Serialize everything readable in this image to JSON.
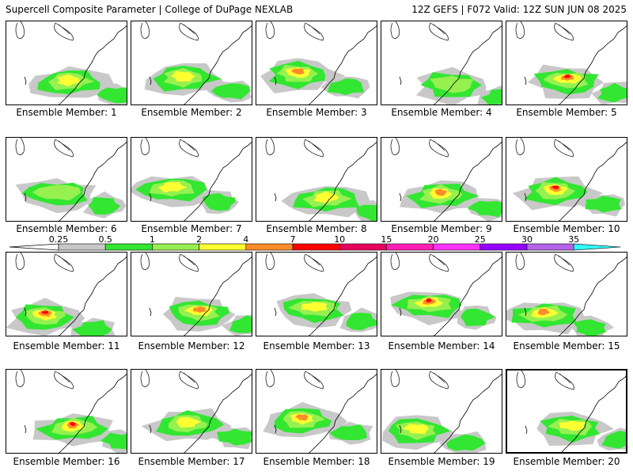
{
  "header": {
    "left": "Supercell Composite Parameter | College of DuPage NEXLAB",
    "right": "12Z GEFS | F072 Valid: 12Z SUN JUN 08 2025"
  },
  "caption_prefix": "Ensemble Member: ",
  "highlighted_member": 20,
  "members": [
    {
      "id": 1,
      "peak": 2
    },
    {
      "id": 2,
      "peak": 2
    },
    {
      "id": 3,
      "peak": 4
    },
    {
      "id": 4,
      "peak": 1
    },
    {
      "id": 5,
      "peak": 7
    },
    {
      "id": 6,
      "peak": 1
    },
    {
      "id": 7,
      "peak": 2
    },
    {
      "id": 8,
      "peak": 2
    },
    {
      "id": 9,
      "peak": 4
    },
    {
      "id": 10,
      "peak": 7
    },
    {
      "id": 11,
      "peak": 7
    },
    {
      "id": 12,
      "peak": 4
    },
    {
      "id": 13,
      "peak": 2
    },
    {
      "id": 14,
      "peak": 7
    },
    {
      "id": 15,
      "peak": 4
    },
    {
      "id": 16,
      "peak": 7
    },
    {
      "id": 17,
      "peak": 2
    },
    {
      "id": 18,
      "peak": 4
    },
    {
      "id": 19,
      "peak": 2
    },
    {
      "id": 20,
      "peak": 2
    }
  ],
  "colorbar": {
    "levels": [
      "0.25",
      "0.5",
      "1",
      "2",
      "4",
      "7",
      "10",
      "15",
      "20",
      "25",
      "30",
      "35"
    ],
    "colors": [
      "#c8c8c8",
      "#32e632",
      "#96f050",
      "#ffff32",
      "#ff8c28",
      "#ff0000",
      "#e6005a",
      "#ff1eb4",
      "#ff32ff",
      "#9600ff",
      "#b464e6",
      "#32ffff"
    ]
  }
}
